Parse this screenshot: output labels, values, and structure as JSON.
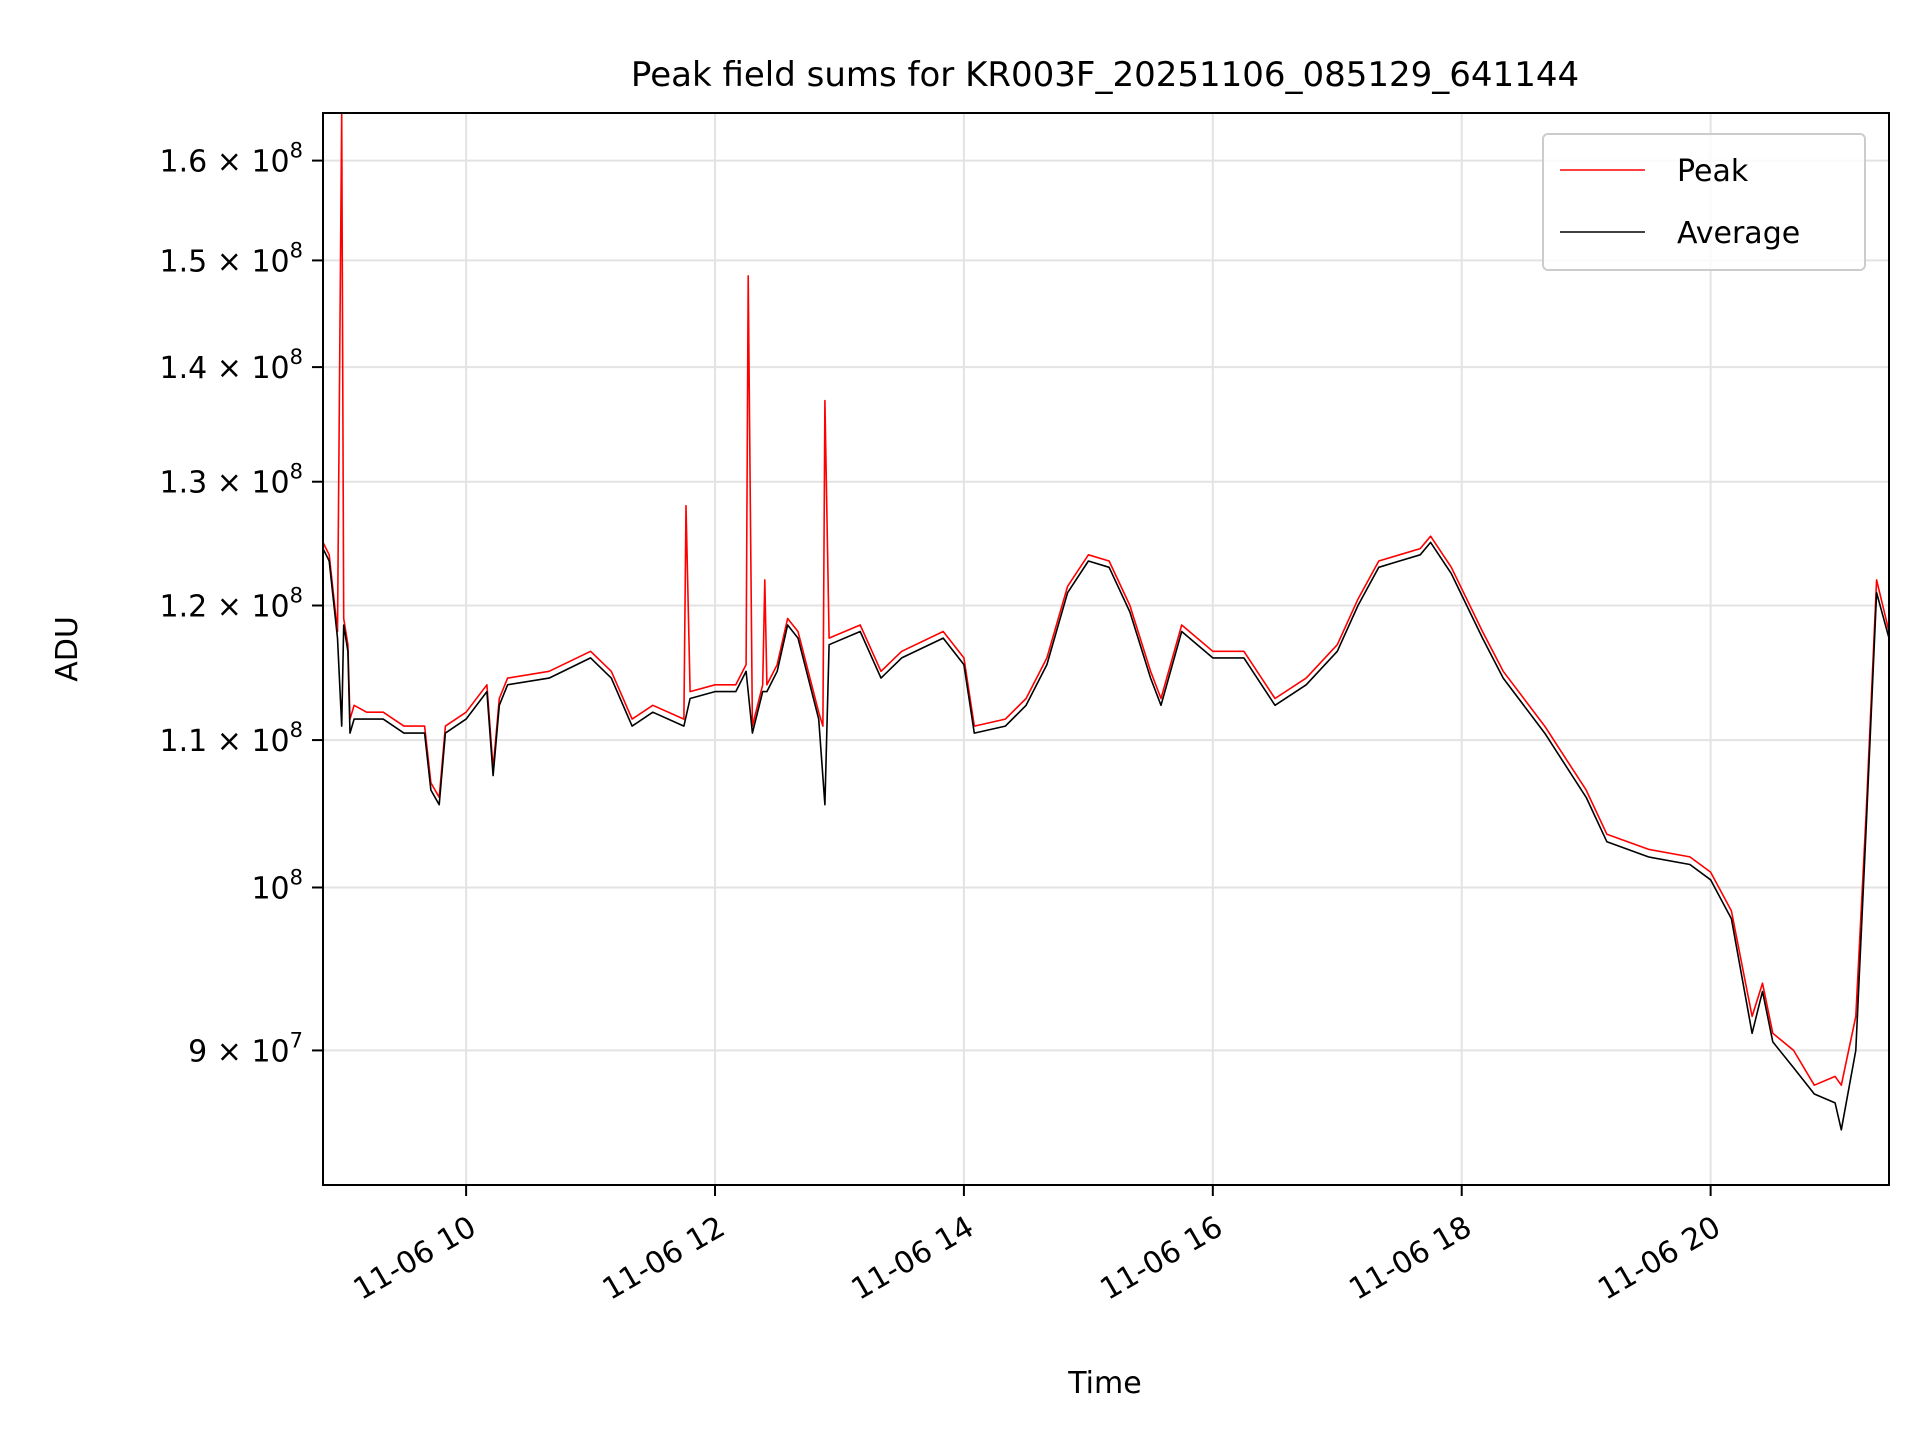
{
  "chart_data": {
    "type": "line",
    "title": "Peak field sums for KR003F_20251106_085129_641144",
    "xlabel": "Time",
    "ylabel": "ADU",
    "yscale": "log",
    "grid": true,
    "legend_position": "upper right",
    "x_range": [
      "2025-11-06T08:51",
      "2025-11-06T21:26"
    ],
    "ylim": [
      82500000,
      165000000
    ],
    "x_ticks": [
      "11-06 10",
      "11-06 12",
      "11-06 14",
      "11-06 16",
      "11-06 18",
      "11-06 20"
    ],
    "x_tick_times": [
      "2025-11-06T10:00",
      "2025-11-06T12:00",
      "2025-11-06T14:00",
      "2025-11-06T16:00",
      "2025-11-06T18:00",
      "2025-11-06T20:00"
    ],
    "y_ticks": [
      {
        "value": 90000000,
        "mantissa": "9",
        "base": "10",
        "exp": "7"
      },
      {
        "value": 100000000,
        "mantissa": "",
        "base": "10",
        "exp": "8"
      },
      {
        "value": 110000000,
        "mantissa": "1.1",
        "base": "10",
        "exp": "8"
      },
      {
        "value": 120000000,
        "mantissa": "1.2",
        "base": "10",
        "exp": "8"
      },
      {
        "value": 130000000,
        "mantissa": "1.3",
        "base": "10",
        "exp": "8"
      },
      {
        "value": 140000000,
        "mantissa": "1.4",
        "base": "10",
        "exp": "8"
      },
      {
        "value": 150000000,
        "mantissa": "1.5",
        "base": "10",
        "exp": "8"
      },
      {
        "value": 160000000,
        "mantissa": "1.6",
        "base": "10",
        "exp": "8"
      }
    ],
    "series": [
      {
        "name": "Peak",
        "color": "#ff0000",
        "x": [
          "2025-11-06T08:51",
          "2025-11-06T08:54",
          "2025-11-06T08:58",
          "2025-11-06T09:00",
          "2025-11-06T09:01",
          "2025-11-06T09:03",
          "2025-11-06T09:04",
          "2025-11-06T09:06",
          "2025-11-06T09:12",
          "2025-11-06T09:20",
          "2025-11-06T09:30",
          "2025-11-06T09:40",
          "2025-11-06T09:43",
          "2025-11-06T09:47",
          "2025-11-06T09:50",
          "2025-11-06T10:00",
          "2025-11-06T10:10",
          "2025-11-06T10:13",
          "2025-11-06T10:16",
          "2025-11-06T10:20",
          "2025-11-06T10:40",
          "2025-11-06T11:00",
          "2025-11-06T11:10",
          "2025-11-06T11:20",
          "2025-11-06T11:30",
          "2025-11-06T11:45",
          "2025-11-06T11:46",
          "2025-11-06T11:48",
          "2025-11-06T12:00",
          "2025-11-06T12:10",
          "2025-11-06T12:15",
          "2025-11-06T12:16",
          "2025-11-06T12:18",
          "2025-11-06T12:23",
          "2025-11-06T12:24",
          "2025-11-06T12:25",
          "2025-11-06T12:30",
          "2025-11-06T12:35",
          "2025-11-06T12:40",
          "2025-11-06T12:50",
          "2025-11-06T12:52",
          "2025-11-06T12:53",
          "2025-11-06T12:55",
          "2025-11-06T13:10",
          "2025-11-06T13:20",
          "2025-11-06T13:30",
          "2025-11-06T13:50",
          "2025-11-06T14:00",
          "2025-11-06T14:05",
          "2025-11-06T14:20",
          "2025-11-06T14:30",
          "2025-11-06T14:40",
          "2025-11-06T14:50",
          "2025-11-06T15:00",
          "2025-11-06T15:10",
          "2025-11-06T15:20",
          "2025-11-06T15:30",
          "2025-11-06T15:35",
          "2025-11-06T15:45",
          "2025-11-06T16:00",
          "2025-11-06T16:15",
          "2025-11-06T16:30",
          "2025-11-06T16:45",
          "2025-11-06T17:00",
          "2025-11-06T17:10",
          "2025-11-06T17:20",
          "2025-11-06T17:30",
          "2025-11-06T17:40",
          "2025-11-06T17:45",
          "2025-11-06T17:55",
          "2025-11-06T18:10",
          "2025-11-06T18:20",
          "2025-11-06T18:40",
          "2025-11-06T19:00",
          "2025-11-06T19:10",
          "2025-11-06T19:30",
          "2025-11-06T19:50",
          "2025-11-06T20:00",
          "2025-11-06T20:10",
          "2025-11-06T20:20",
          "2025-11-06T20:25",
          "2025-11-06T20:30",
          "2025-11-06T20:40",
          "2025-11-06T20:50",
          "2025-11-06T21:00",
          "2025-11-06T21:03",
          "2025-11-06T21:10",
          "2025-11-06T21:15",
          "2025-11-06T21:20",
          "2025-11-06T21:26"
        ],
        "y": [
          125000000,
          124000000,
          118000000,
          165000000,
          119000000,
          117000000,
          111500000,
          112500000,
          112000000,
          112000000,
          111000000,
          111000000,
          107000000,
          106000000,
          111000000,
          112000000,
          114000000,
          108000000,
          113000000,
          114500000,
          115000000,
          116500000,
          115000000,
          111500000,
          112500000,
          111500000,
          128000000,
          113500000,
          114000000,
          114000000,
          115500000,
          148500000,
          111000000,
          114000000,
          122000000,
          114000000,
          115500000,
          119000000,
          118000000,
          112000000,
          111000000,
          137000000,
          117500000,
          118500000,
          115000000,
          116500000,
          118000000,
          116000000,
          111000000,
          111500000,
          113000000,
          116000000,
          121500000,
          124000000,
          123500000,
          120000000,
          115000000,
          113000000,
          118500000,
          116500000,
          116500000,
          113000000,
          114500000,
          117000000,
          120500000,
          123500000,
          124000000,
          124500000,
          125500000,
          123000000,
          118000000,
          115000000,
          111000000,
          106500000,
          103500000,
          102500000,
          102000000,
          101000000,
          98500000,
          92000000,
          94000000,
          91000000,
          90000000,
          88000000,
          88500000,
          88000000,
          92000000,
          105000000,
          122000000,
          118000000
        ]
      },
      {
        "name": "Average",
        "color": "#000000",
        "x": [
          "2025-11-06T08:51",
          "2025-11-06T08:54",
          "2025-11-06T08:58",
          "2025-11-06T09:00",
          "2025-11-06T09:01",
          "2025-11-06T09:03",
          "2025-11-06T09:04",
          "2025-11-06T09:06",
          "2025-11-06T09:12",
          "2025-11-06T09:20",
          "2025-11-06T09:30",
          "2025-11-06T09:40",
          "2025-11-06T09:43",
          "2025-11-06T09:47",
          "2025-11-06T09:50",
          "2025-11-06T10:00",
          "2025-11-06T10:10",
          "2025-11-06T10:13",
          "2025-11-06T10:16",
          "2025-11-06T10:20",
          "2025-11-06T10:40",
          "2025-11-06T11:00",
          "2025-11-06T11:10",
          "2025-11-06T11:20",
          "2025-11-06T11:30",
          "2025-11-06T11:45",
          "2025-11-06T11:48",
          "2025-11-06T12:00",
          "2025-11-06T12:10",
          "2025-11-06T12:15",
          "2025-11-06T12:18",
          "2025-11-06T12:23",
          "2025-11-06T12:25",
          "2025-11-06T12:30",
          "2025-11-06T12:35",
          "2025-11-06T12:40",
          "2025-11-06T12:50",
          "2025-11-06T12:53",
          "2025-11-06T12:55",
          "2025-11-06T13:10",
          "2025-11-06T13:20",
          "2025-11-06T13:30",
          "2025-11-06T13:50",
          "2025-11-06T14:00",
          "2025-11-06T14:05",
          "2025-11-06T14:20",
          "2025-11-06T14:30",
          "2025-11-06T14:40",
          "2025-11-06T14:50",
          "2025-11-06T15:00",
          "2025-11-06T15:10",
          "2025-11-06T15:20",
          "2025-11-06T15:30",
          "2025-11-06T15:35",
          "2025-11-06T15:45",
          "2025-11-06T16:00",
          "2025-11-06T16:15",
          "2025-11-06T16:30",
          "2025-11-06T16:45",
          "2025-11-06T17:00",
          "2025-11-06T17:10",
          "2025-11-06T17:20",
          "2025-11-06T17:30",
          "2025-11-06T17:40",
          "2025-11-06T17:45",
          "2025-11-06T17:55",
          "2025-11-06T18:10",
          "2025-11-06T18:20",
          "2025-11-06T18:40",
          "2025-11-06T19:00",
          "2025-11-06T19:10",
          "2025-11-06T19:30",
          "2025-11-06T19:50",
          "2025-11-06T20:00",
          "2025-11-06T20:10",
          "2025-11-06T20:20",
          "2025-11-06T20:25",
          "2025-11-06T20:30",
          "2025-11-06T20:40",
          "2025-11-06T20:50",
          "2025-11-06T21:00",
          "2025-11-06T21:03",
          "2025-11-06T21:10",
          "2025-11-06T21:15",
          "2025-11-06T21:20",
          "2025-11-06T21:26"
        ],
        "y": [
          124500000,
          123500000,
          117500000,
          111000000,
          118500000,
          116500000,
          110500000,
          111500000,
          111500000,
          111500000,
          110500000,
          110500000,
          106500000,
          105500000,
          110500000,
          111500000,
          113500000,
          107500000,
          112500000,
          114000000,
          114500000,
          116000000,
          114500000,
          111000000,
          112000000,
          111000000,
          113000000,
          113500000,
          113500000,
          115000000,
          110500000,
          113500000,
          113500000,
          115000000,
          118500000,
          117500000,
          111500000,
          105500000,
          117000000,
          118000000,
          114500000,
          116000000,
          117500000,
          115500000,
          110500000,
          111000000,
          112500000,
          115500000,
          121000000,
          123500000,
          123000000,
          119500000,
          114500000,
          112500000,
          118000000,
          116000000,
          116000000,
          112500000,
          114000000,
          116500000,
          120000000,
          123000000,
          123500000,
          124000000,
          125000000,
          122500000,
          117500000,
          114500000,
          110500000,
          106000000,
          103000000,
          102000000,
          101500000,
          100500000,
          98000000,
          91000000,
          93500000,
          90500000,
          89000000,
          87500000,
          87000000,
          85500000,
          90000000,
          104000000,
          121000000,
          117500000
        ]
      }
    ]
  }
}
